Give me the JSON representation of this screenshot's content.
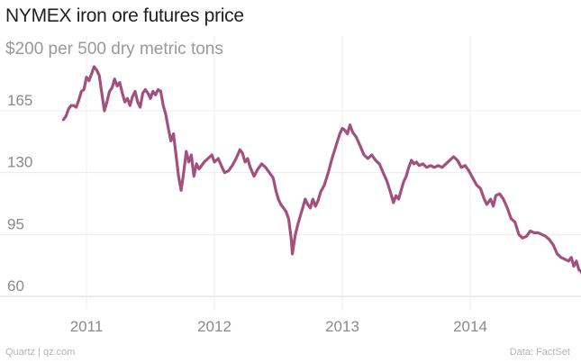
{
  "chart_data": {
    "type": "line",
    "title": "NYMEX iron ore futures price",
    "subtitle": "$200 per 500 dry metric tons",
    "xlabel": "",
    "ylabel": "",
    "x_tick_labels": [
      "2011",
      "2012",
      "2013",
      "2014"
    ],
    "y_ticks": [
      60,
      95,
      130,
      165
    ],
    "ylim": [
      55,
      200
    ],
    "xlim": [
      2010.8,
      2014.93
    ],
    "grid": true,
    "color": "#a2517f",
    "series": [
      {
        "name": "",
        "points": [
          [
            2010.82,
            160
          ],
          [
            2010.84,
            162
          ],
          [
            2010.86,
            166
          ],
          [
            2010.88,
            168
          ],
          [
            2010.9,
            168
          ],
          [
            2010.92,
            167
          ],
          [
            2010.94,
            171
          ],
          [
            2010.96,
            176
          ],
          [
            2010.98,
            177
          ],
          [
            2011.0,
            184
          ],
          [
            2011.02,
            182
          ],
          [
            2011.04,
            186
          ],
          [
            2011.06,
            190
          ],
          [
            2011.08,
            188
          ],
          [
            2011.1,
            185
          ],
          [
            2011.12,
            175
          ],
          [
            2011.14,
            165
          ],
          [
            2011.16,
            170
          ],
          [
            2011.18,
            176
          ],
          [
            2011.2,
            178
          ],
          [
            2011.22,
            183
          ],
          [
            2011.24,
            179
          ],
          [
            2011.26,
            181
          ],
          [
            2011.28,
            175
          ],
          [
            2011.3,
            170
          ],
          [
            2011.32,
            172
          ],
          [
            2011.34,
            168
          ],
          [
            2011.36,
            173
          ],
          [
            2011.38,
            176
          ],
          [
            2011.4,
            170
          ],
          [
            2011.42,
            167
          ],
          [
            2011.44,
            175
          ],
          [
            2011.46,
            177
          ],
          [
            2011.48,
            175
          ],
          [
            2011.5,
            172
          ],
          [
            2011.52,
            176
          ],
          [
            2011.54,
            174
          ],
          [
            2011.56,
            177
          ],
          [
            2011.58,
            176
          ],
          [
            2011.6,
            168
          ],
          [
            2011.62,
            163
          ],
          [
            2011.64,
            155
          ],
          [
            2011.66,
            148
          ],
          [
            2011.68,
            152
          ],
          [
            2011.7,
            140
          ],
          [
            2011.72,
            128
          ],
          [
            2011.74,
            120
          ],
          [
            2011.76,
            130
          ],
          [
            2011.78,
            142
          ],
          [
            2011.8,
            136
          ],
          [
            2011.82,
            140
          ],
          [
            2011.84,
            128
          ],
          [
            2011.86,
            135
          ],
          [
            2011.88,
            132
          ],
          [
            2011.9,
            134
          ],
          [
            2011.92,
            136
          ],
          [
            2011.95,
            138
          ],
          [
            2011.98,
            140
          ],
          [
            2012.0,
            136
          ],
          [
            2012.03,
            138
          ],
          [
            2012.06,
            133
          ],
          [
            2012.08,
            130
          ],
          [
            2012.11,
            131
          ],
          [
            2012.14,
            134
          ],
          [
            2012.17,
            138
          ],
          [
            2012.2,
            143
          ],
          [
            2012.22,
            141
          ],
          [
            2012.24,
            136
          ],
          [
            2012.26,
            138
          ],
          [
            2012.28,
            133
          ],
          [
            2012.31,
            128
          ],
          [
            2012.34,
            132
          ],
          [
            2012.37,
            135
          ],
          [
            2012.4,
            133
          ],
          [
            2012.43,
            130
          ],
          [
            2012.46,
            127
          ],
          [
            2012.48,
            120
          ],
          [
            2012.5,
            115
          ],
          [
            2012.52,
            112
          ],
          [
            2012.54,
            110
          ],
          [
            2012.56,
            108
          ],
          [
            2012.58,
            104
          ],
          [
            2012.6,
            93
          ],
          [
            2012.61,
            84
          ],
          [
            2012.63,
            94
          ],
          [
            2012.65,
            100
          ],
          [
            2012.67,
            105
          ],
          [
            2012.69,
            110
          ],
          [
            2012.71,
            115
          ],
          [
            2012.73,
            112
          ],
          [
            2012.75,
            110
          ],
          [
            2012.77,
            115
          ],
          [
            2012.79,
            111
          ],
          [
            2012.81,
            114
          ],
          [
            2012.83,
            119
          ],
          [
            2012.86,
            123
          ],
          [
            2012.89,
            130
          ],
          [
            2012.92,
            138
          ],
          [
            2012.95,
            145
          ],
          [
            2012.98,
            152
          ],
          [
            2013.0,
            155
          ],
          [
            2013.02,
            154
          ],
          [
            2013.04,
            152
          ],
          [
            2013.06,
            157
          ],
          [
            2013.08,
            153
          ],
          [
            2013.11,
            150
          ],
          [
            2013.14,
            145
          ],
          [
            2013.17,
            140
          ],
          [
            2013.2,
            138
          ],
          [
            2013.23,
            140
          ],
          [
            2013.26,
            137
          ],
          [
            2013.29,
            135
          ],
          [
            2013.32,
            130
          ],
          [
            2013.35,
            125
          ],
          [
            2013.38,
            118
          ],
          [
            2013.4,
            113
          ],
          [
            2013.42,
            117
          ],
          [
            2013.44,
            115
          ],
          [
            2013.46,
            120
          ],
          [
            2013.48,
            125
          ],
          [
            2013.5,
            128
          ],
          [
            2013.52,
            133
          ],
          [
            2013.54,
            137
          ],
          [
            2013.56,
            135
          ],
          [
            2013.58,
            136
          ],
          [
            2013.6,
            134
          ],
          [
            2013.63,
            135
          ],
          [
            2013.66,
            133
          ],
          [
            2013.69,
            134
          ],
          [
            2013.72,
            133
          ],
          [
            2013.75,
            134
          ],
          [
            2013.78,
            133
          ],
          [
            2013.81,
            135
          ],
          [
            2013.84,
            137
          ],
          [
            2013.87,
            139
          ],
          [
            2013.9,
            137
          ],
          [
            2013.93,
            133
          ],
          [
            2013.96,
            134
          ],
          [
            2013.99,
            131
          ],
          [
            2014.02,
            127
          ],
          [
            2014.05,
            123
          ],
          [
            2014.08,
            121
          ],
          [
            2014.11,
            115
          ],
          [
            2014.13,
            112
          ],
          [
            2014.16,
            115
          ],
          [
            2014.18,
            111
          ],
          [
            2014.2,
            117
          ],
          [
            2014.23,
            118
          ],
          [
            2014.26,
            115
          ],
          [
            2014.29,
            110
          ],
          [
            2014.32,
            104
          ],
          [
            2014.35,
            102
          ],
          [
            2014.38,
            95
          ],
          [
            2014.41,
            93
          ],
          [
            2014.44,
            94
          ],
          [
            2014.47,
            97
          ],
          [
            2014.5,
            96
          ],
          [
            2014.53,
            96
          ],
          [
            2014.56,
            95
          ],
          [
            2014.59,
            94
          ],
          [
            2014.62,
            92
          ],
          [
            2014.65,
            89
          ],
          [
            2014.68,
            84
          ],
          [
            2014.71,
            82
          ],
          [
            2014.74,
            81
          ],
          [
            2014.77,
            80
          ],
          [
            2014.79,
            82
          ],
          [
            2014.81,
            77
          ],
          [
            2014.83,
            80
          ],
          [
            2014.85,
            75
          ],
          [
            2014.87,
            74
          ],
          [
            2014.89,
            69
          ]
        ]
      }
    ]
  },
  "footer": {
    "source_left": "Quartz | qz.com",
    "source_right": "Data: FactSet"
  }
}
